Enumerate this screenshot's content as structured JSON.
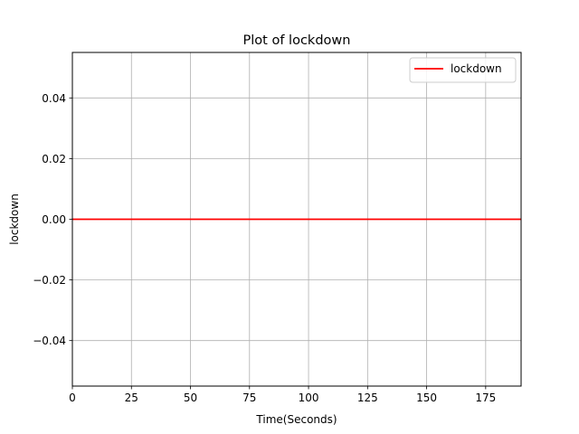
{
  "chart_data": {
    "type": "line",
    "title": "Plot of lockdown",
    "xlabel": "Time(Seconds)",
    "ylabel": "lockdown",
    "xlim": [
      0,
      190
    ],
    "ylim": [
      -0.055,
      0.055
    ],
    "x_ticks": [
      0,
      25,
      50,
      75,
      100,
      125,
      150,
      175
    ],
    "y_ticks": [
      -0.04,
      -0.02,
      0.0,
      0.02,
      0.04
    ],
    "x_tick_labels": [
      "0",
      "25",
      "50",
      "75",
      "100",
      "125",
      "150",
      "175"
    ],
    "y_tick_labels": [
      "−0.04",
      "−0.02",
      "0.00",
      "0.02",
      "0.04"
    ],
    "grid": true,
    "legend_position": "top-right",
    "series": [
      {
        "name": "lockdown",
        "color": "#ff0000",
        "x": [
          0,
          190
        ],
        "y": [
          0,
          0
        ]
      }
    ]
  }
}
